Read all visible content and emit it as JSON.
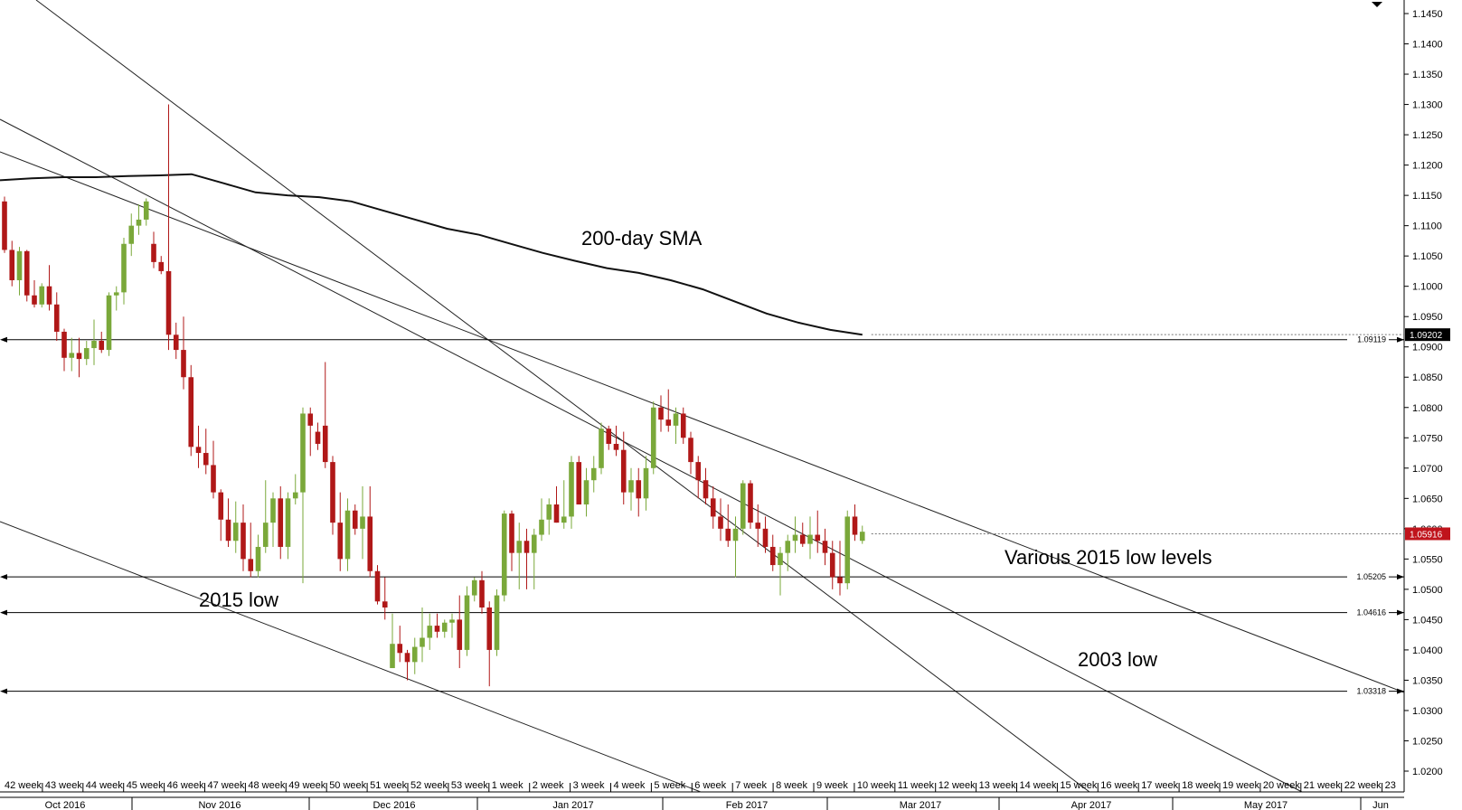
{
  "chart_data": {
    "type": "candlestick",
    "annotations": [
      "200-day SMA",
      "Various 2015 low levels",
      "2015 low",
      "2003 low"
    ],
    "ylim": [
      1.017,
      1.1475
    ],
    "y_ticks": [
      "1.1450",
      "1.1400",
      "1.1350",
      "1.1300",
      "1.1250",
      "1.1200",
      "1.1150",
      "1.1100",
      "1.1050",
      "1.1000",
      "1.0950",
      "1.0900",
      "1.0850",
      "1.0800",
      "1.0750",
      "1.0700",
      "1.0650",
      "1.0600",
      "1.0550",
      "1.0500",
      "1.0450",
      "1.0400",
      "1.0350",
      "1.0300",
      "1.0250",
      "1.0200"
    ],
    "week_labels": [
      "42 week",
      "43 week",
      "44 week",
      "45 week",
      "46 week",
      "47 week",
      "48 week",
      "49 week",
      "50 week",
      "51 week",
      "52 week",
      "53 week",
      "1 week",
      "2 week",
      "3 week",
      "4 week",
      "5 week",
      "6 week",
      "7 week",
      "8 week",
      "9 week",
      "10 week",
      "11 week",
      "12 week",
      "13 week",
      "14 week",
      "15 week",
      "16 week",
      "17 week",
      "18 week",
      "19 week",
      "20 week",
      "21 week",
      "22 week",
      "23"
    ],
    "month_labels": [
      "Oct 2016",
      "Nov 2016",
      "Dec 2016",
      "Jan 2017",
      "Feb 2017",
      "Mar 2017",
      "Apr 2017",
      "May 2017",
      "Jun"
    ],
    "horizontal_levels": [
      {
        "label": "1.09119",
        "value": 1.09119
      },
      {
        "label": "1.05205",
        "value": 1.05205
      },
      {
        "label": "1.04616",
        "value": 1.04616
      },
      {
        "label": "1.03318",
        "value": 1.03318
      }
    ],
    "price_boxes": [
      {
        "label": "1.09202",
        "value": 1.09202
      },
      {
        "label": "1.05916",
        "value": 1.05916
      }
    ],
    "candles": [
      [
        1.114,
        1.1148,
        1.1055,
        1.106
      ],
      [
        1.106,
        1.1075,
        1.1,
        1.101
      ],
      [
        1.101,
        1.1065,
        1.0985,
        1.1058
      ],
      [
        1.1058,
        1.106,
        1.0975,
        1.0985
      ],
      [
        1.0985,
        1.101,
        1.0965,
        1.097
      ],
      [
        1.097,
        1.1005,
        1.0965,
        1.1
      ],
      [
        1.1,
        1.1035,
        1.096,
        1.097
      ],
      [
        1.097,
        1.099,
        1.091,
        1.0925
      ],
      [
        1.0925,
        1.093,
        1.086,
        1.0882
      ],
      [
        1.0882,
        1.0915,
        1.086,
        1.089
      ],
      [
        1.089,
        1.0915,
        1.085,
        1.088
      ],
      [
        1.088,
        1.091,
        1.087,
        1.0898
      ],
      [
        1.0898,
        1.0945,
        1.087,
        1.091
      ],
      [
        1.091,
        1.0925,
        1.089,
        1.0895
      ],
      [
        1.0895,
        1.099,
        1.0885,
        1.0985
      ],
      [
        1.0985,
        1.1,
        1.096,
        1.099
      ],
      [
        1.099,
        1.108,
        1.097,
        1.107
      ],
      [
        1.107,
        1.112,
        1.105,
        1.11
      ],
      [
        1.11,
        1.1135,
        1.1085,
        1.111
      ],
      [
        1.111,
        1.1145,
        1.11,
        1.114
      ],
      [
        1.107,
        1.109,
        1.103,
        1.104
      ],
      [
        1.104,
        1.105,
        1.102,
        1.1025
      ],
      [
        1.1025,
        1.13,
        1.0895,
        1.092
      ],
      [
        1.092,
        1.094,
        1.088,
        1.0895
      ],
      [
        1.0895,
        1.095,
        1.083,
        1.085
      ],
      [
        1.085,
        1.087,
        1.072,
        1.0735
      ],
      [
        1.0735,
        1.077,
        1.07,
        1.0725
      ],
      [
        1.0725,
        1.0765,
        1.069,
        1.0705
      ],
      [
        1.0705,
        1.0745,
        1.065,
        1.066
      ],
      [
        1.066,
        1.0665,
        1.058,
        1.0615
      ],
      [
        1.0615,
        1.065,
        1.057,
        1.058
      ],
      [
        1.058,
        1.0645,
        1.056,
        1.061
      ],
      [
        1.061,
        1.064,
        1.053,
        1.055
      ],
      [
        1.055,
        1.061,
        1.052,
        1.053
      ],
      [
        1.053,
        1.059,
        1.052,
        1.057
      ],
      [
        1.057,
        1.068,
        1.056,
        1.061
      ],
      [
        1.061,
        1.066,
        1.057,
        1.065
      ],
      [
        1.065,
        1.067,
        1.055,
        1.057
      ],
      [
        1.057,
        1.066,
        1.055,
        1.065
      ],
      [
        1.065,
        1.069,
        1.064,
        1.066
      ],
      [
        1.066,
        1.08,
        1.051,
        1.079
      ],
      [
        1.079,
        1.08,
        1.072,
        1.077
      ],
      [
        1.076,
        1.0775,
        1.073,
        1.074
      ],
      [
        1.077,
        1.0875,
        1.07,
        1.071
      ],
      [
        1.071,
        1.072,
        1.059,
        1.061
      ],
      [
        1.061,
        1.066,
        1.053,
        1.055
      ],
      [
        1.055,
        1.065,
        1.053,
        1.063
      ],
      [
        1.063,
        1.064,
        1.059,
        1.06
      ],
      [
        1.06,
        1.067,
        1.055,
        1.062
      ],
      [
        1.062,
        1.067,
        1.052,
        1.053
      ],
      [
        1.053,
        1.054,
        1.0475,
        1.048
      ],
      [
        1.048,
        1.052,
        1.045,
        1.047
      ],
      [
        1.037,
        1.046,
        1.037,
        1.041
      ],
      [
        1.041,
        1.044,
        1.038,
        1.0395
      ],
      [
        1.0395,
        1.04,
        1.035,
        1.038
      ],
      [
        1.038,
        1.042,
        1.036,
        1.0405
      ],
      [
        1.0405,
        1.047,
        1.038,
        1.042
      ],
      [
        1.042,
        1.046,
        1.04,
        1.044
      ],
      [
        1.044,
        1.046,
        1.042,
        1.043
      ],
      [
        1.043,
        1.045,
        1.042,
        1.0445
      ],
      [
        1.0445,
        1.046,
        1.042,
        1.045
      ],
      [
        1.045,
        1.049,
        1.037,
        1.04
      ],
      [
        1.04,
        1.0505,
        1.039,
        1.049
      ],
      [
        1.049,
        1.052,
        1.048,
        1.0515
      ],
      [
        1.0515,
        1.053,
        1.046,
        1.047
      ],
      [
        1.047,
        1.048,
        1.034,
        1.04
      ],
      [
        1.04,
        1.05,
        1.039,
        1.049
      ],
      [
        1.049,
        1.063,
        1.048,
        1.0625
      ],
      [
        1.0625,
        1.063,
        1.053,
        1.056
      ],
      [
        1.056,
        1.061,
        1.05,
        1.058
      ],
      [
        1.058,
        1.06,
        1.05,
        1.056
      ],
      [
        1.056,
        1.06,
        1.05,
        1.059
      ],
      [
        1.059,
        1.065,
        1.058,
        1.0615
      ],
      [
        1.0615,
        1.065,
        1.059,
        1.064
      ],
      [
        1.064,
        1.067,
        1.061,
        1.061
      ],
      [
        1.061,
        1.068,
        1.06,
        1.062
      ],
      [
        1.062,
        1.072,
        1.06,
        1.071
      ],
      [
        1.071,
        1.072,
        1.064,
        1.064
      ],
      [
        1.064,
        1.07,
        1.062,
        1.068
      ],
      [
        1.068,
        1.072,
        1.066,
        1.07
      ],
      [
        1.07,
        1.0775,
        1.069,
        1.0765
      ],
      [
        1.0765,
        1.077,
        1.073,
        1.074
      ],
      [
        1.074,
        1.077,
        1.072,
        1.073
      ],
      [
        1.073,
        1.076,
        1.064,
        1.066
      ],
      [
        1.066,
        1.07,
        1.063,
        1.068
      ],
      [
        1.068,
        1.07,
        1.062,
        1.065
      ],
      [
        1.065,
        1.072,
        1.063,
        1.07
      ],
      [
        1.07,
        1.081,
        1.069,
        1.08
      ],
      [
        1.08,
        1.082,
        1.076,
        1.078
      ],
      [
        1.078,
        1.083,
        1.076,
        1.077
      ],
      [
        1.077,
        1.08,
        1.074,
        1.079
      ],
      [
        1.079,
        1.08,
        1.074,
        1.075
      ],
      [
        1.075,
        1.076,
        1.069,
        1.071
      ],
      [
        1.071,
        1.072,
        1.065,
        1.068
      ],
      [
        1.068,
        1.07,
        1.064,
        1.065
      ],
      [
        1.065,
        1.067,
        1.06,
        1.062
      ],
      [
        1.062,
        1.065,
        1.058,
        1.06
      ],
      [
        1.06,
        1.064,
        1.057,
        1.058
      ],
      [
        1.058,
        1.062,
        1.052,
        1.06
      ],
      [
        1.06,
        1.068,
        1.059,
        1.0675
      ],
      [
        1.0675,
        1.068,
        1.06,
        1.061
      ],
      [
        1.061,
        1.064,
        1.057,
        1.06
      ],
      [
        1.06,
        1.062,
        1.056,
        1.057
      ],
      [
        1.057,
        1.059,
        1.053,
        1.054
      ],
      [
        1.054,
        1.057,
        1.049,
        1.056
      ],
      [
        1.056,
        1.059,
        1.053,
        1.058
      ],
      [
        1.058,
        1.062,
        1.056,
        1.059
      ],
      [
        1.059,
        1.061,
        1.057,
        1.0575
      ],
      [
        1.0575,
        1.062,
        1.055,
        1.059
      ],
      [
        1.059,
        1.063,
        1.056,
        1.058
      ],
      [
        1.058,
        1.06,
        1.054,
        1.056
      ],
      [
        1.056,
        1.058,
        1.05,
        1.052
      ],
      [
        1.052,
        1.058,
        1.049,
        1.051
      ],
      [
        1.051,
        1.063,
        1.05,
        1.062
      ],
      [
        1.062,
        1.064,
        1.058,
        1.059
      ],
      [
        1.058,
        1.0605,
        1.0575,
        1.0595
      ]
    ],
    "sma_200": [
      1.1175,
      1.1178,
      1.118,
      1.118,
      1.1182,
      1.1183,
      1.1185,
      1.117,
      1.1155,
      1.115,
      1.1147,
      1.114,
      1.1125,
      1.111,
      1.1095,
      1.1085,
      1.107,
      1.1055,
      1.1042,
      1.103,
      1.1022,
      1.101,
      1.0995,
      1.0975,
      1.0955,
      1.094,
      1.0928,
      1.092
    ]
  }
}
